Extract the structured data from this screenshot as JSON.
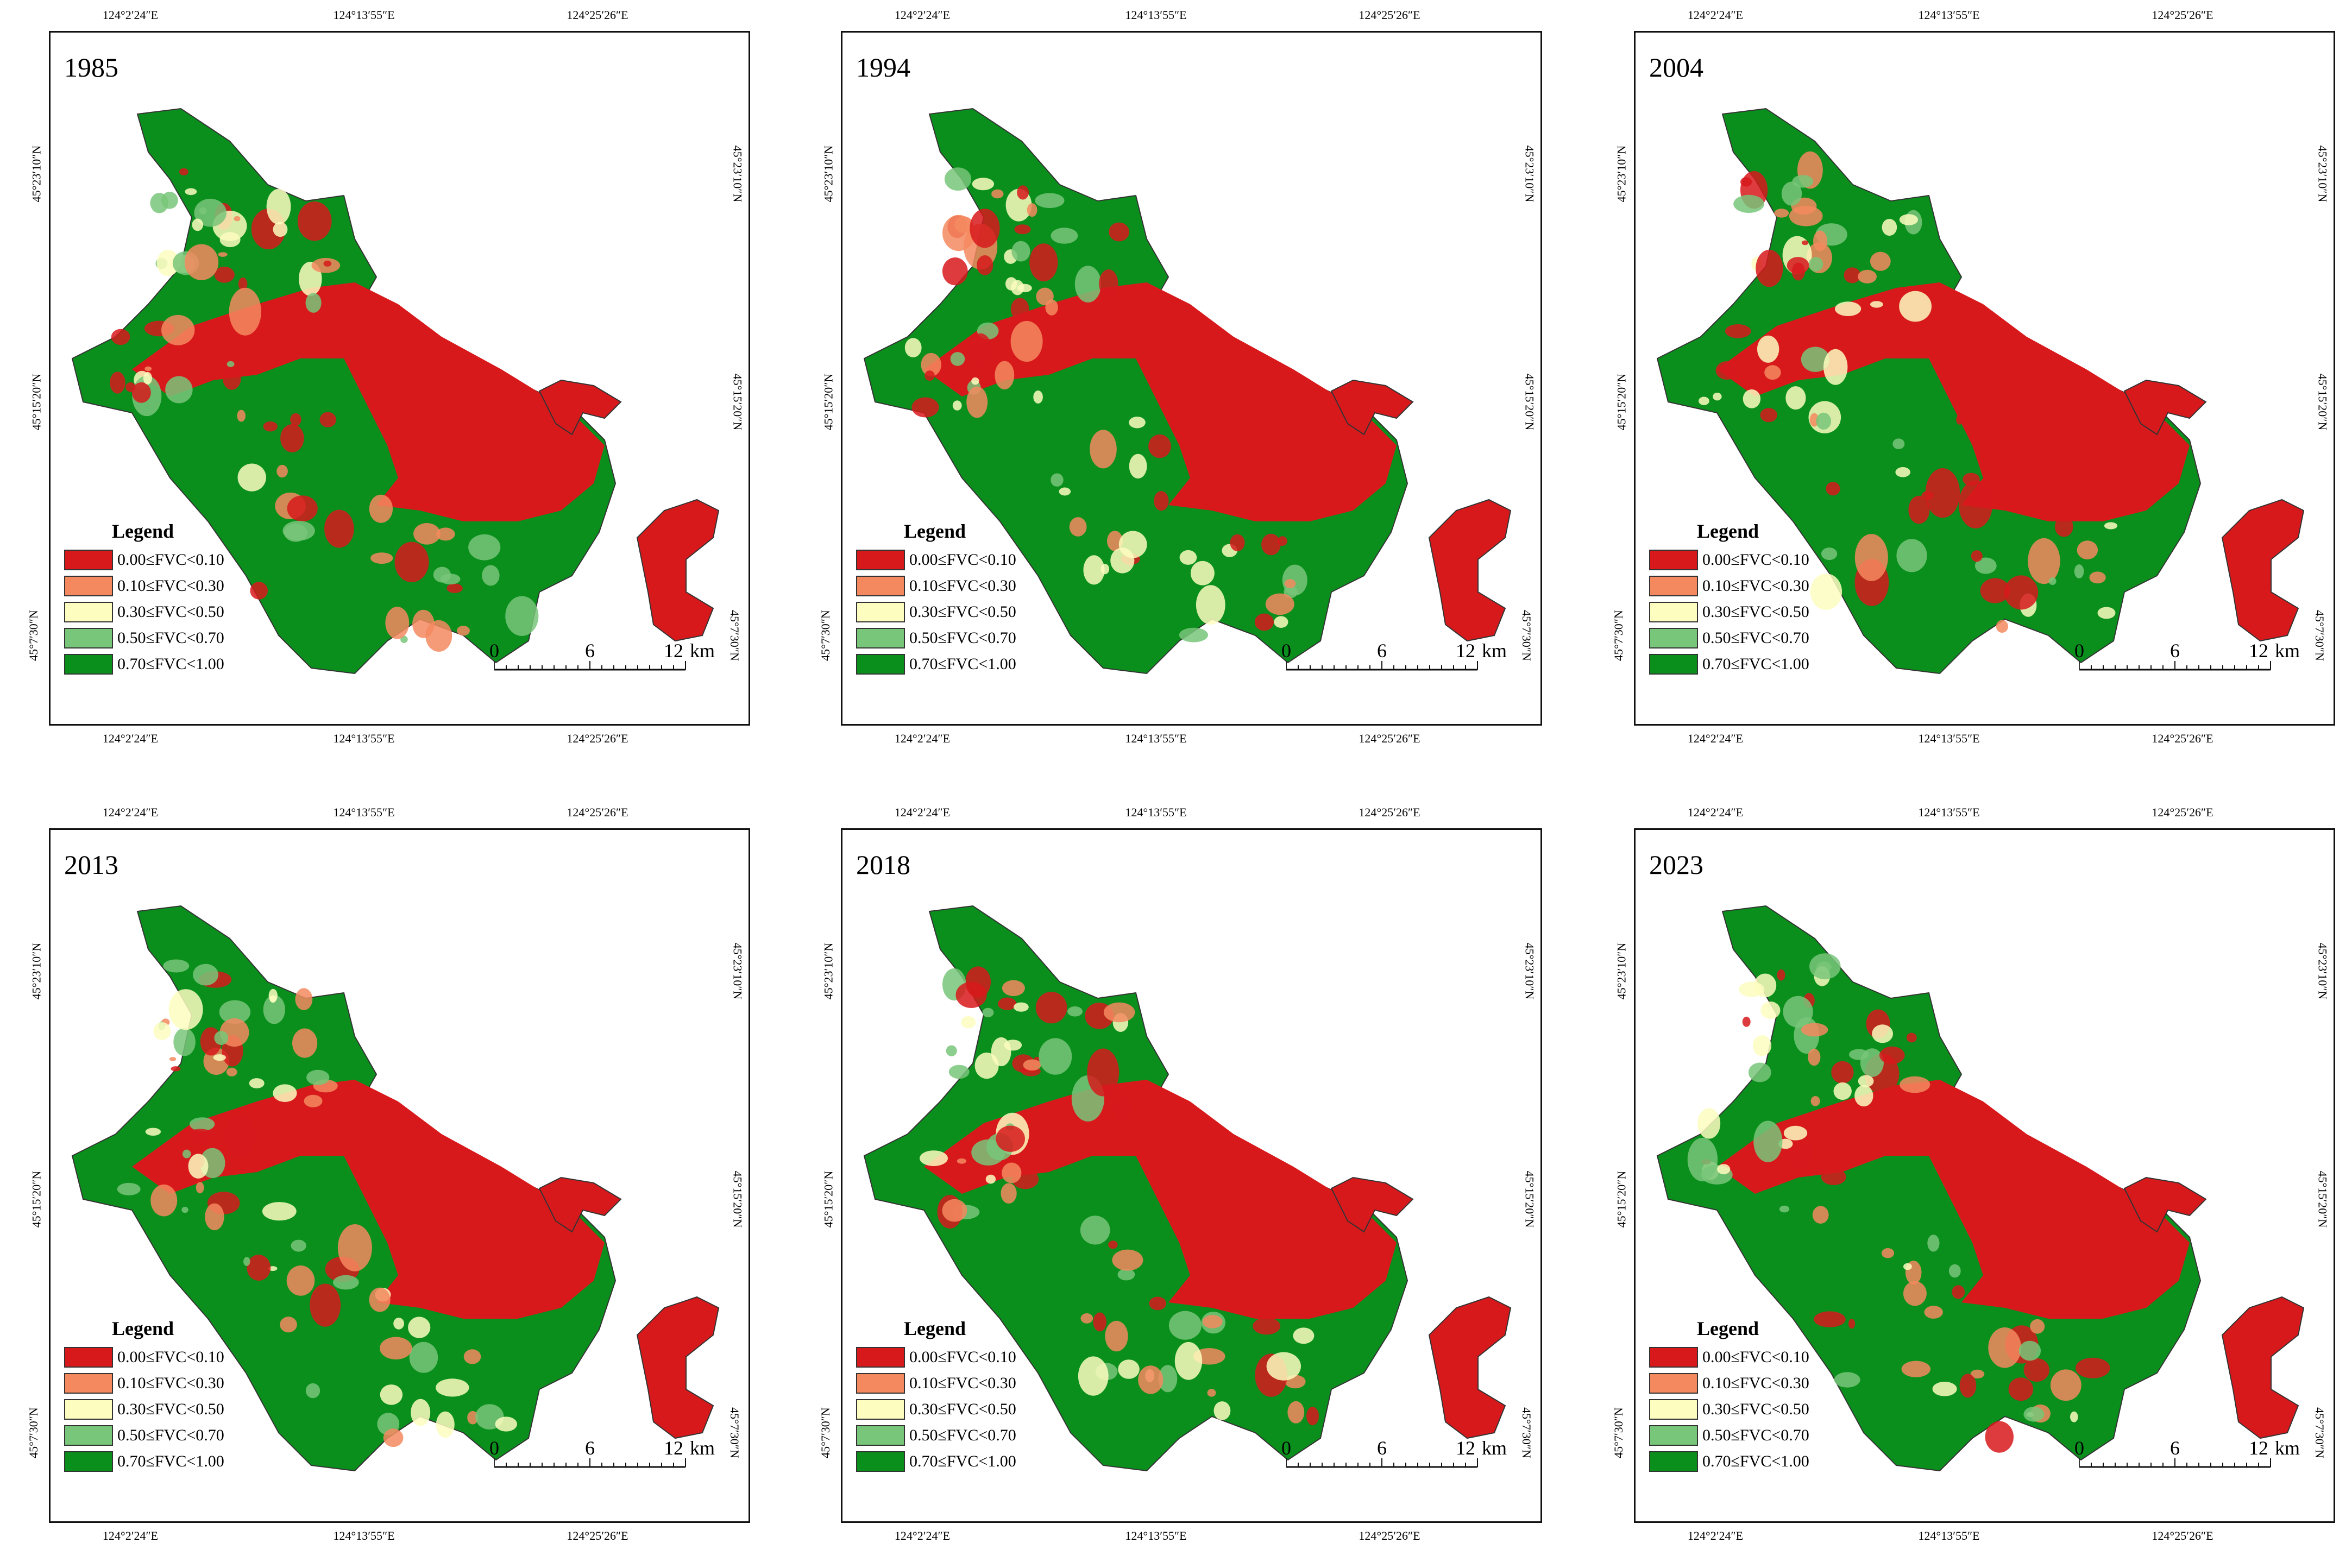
{
  "legend": {
    "title": "Legend",
    "classes": [
      {
        "label": "0.00≤FVC<0.10",
        "color": "#d7191c"
      },
      {
        "label": "0.10≤FVC<0.30",
        "color": "#f4895f"
      },
      {
        "label": "0.30≤FVC<0.50",
        "color": "#fdfdc0"
      },
      {
        "label": "0.50≤FVC<0.70",
        "color": "#78c679"
      },
      {
        "label": "0.70≤FVC<1.00",
        "color": "#0a8f1c"
      }
    ]
  },
  "axes": {
    "lon_labels": [
      "124°2′24″E",
      "124°13′55″E",
      "124°25′26″E"
    ],
    "lat_labels": [
      "45°23′10″N",
      "45°15′20″N",
      "45°7′30″N"
    ]
  },
  "scale_bar": {
    "ticks": [
      "0",
      "6",
      "12"
    ],
    "unit": "km"
  },
  "panels": [
    {
      "year": "1985"
    },
    {
      "year": "1994"
    },
    {
      "year": "2004"
    },
    {
      "year": "2013"
    },
    {
      "year": "2018"
    },
    {
      "year": "2023"
    }
  ]
}
